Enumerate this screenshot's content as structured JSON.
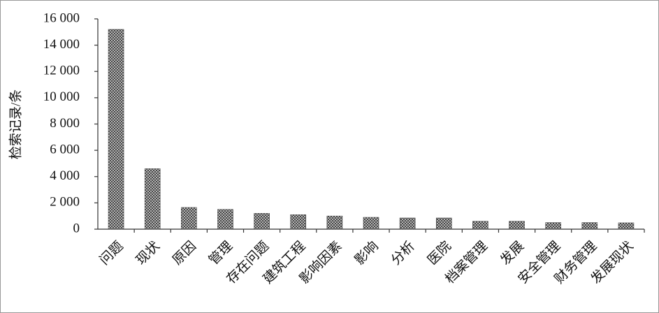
{
  "chart_data": {
    "type": "bar",
    "y_label": "检索记录/条",
    "categories": [
      "问题",
      "现状",
      "原因",
      "管理",
      "存在问题",
      "建筑工程",
      "影响因素",
      "影响",
      "分析",
      "医院",
      "档案管理",
      "发展",
      "安全管理",
      "财务管理",
      "发展现状"
    ],
    "values": [
      15200,
      4600,
      1650,
      1500,
      1200,
      1100,
      1000,
      900,
      850,
      850,
      600,
      600,
      500,
      500,
      480
    ],
    "color": "#444444",
    "ylim": [
      0,
      16000
    ],
    "yticks": [
      0,
      {
        "value": 2000,
        "label": "2 000"
      },
      {
        "value": 4000,
        "label": "4 000"
      },
      {
        "value": 6000,
        "label": "6 000"
      },
      {
        "value": 8000,
        "label": "8 000"
      },
      {
        "value": 10000,
        "label": "10 000"
      },
      {
        "value": 12000,
        "label": "12 000"
      },
      {
        "value": 14000,
        "label": "14 000"
      },
      {
        "value": 16000,
        "label": "16 000"
      }
    ]
  }
}
